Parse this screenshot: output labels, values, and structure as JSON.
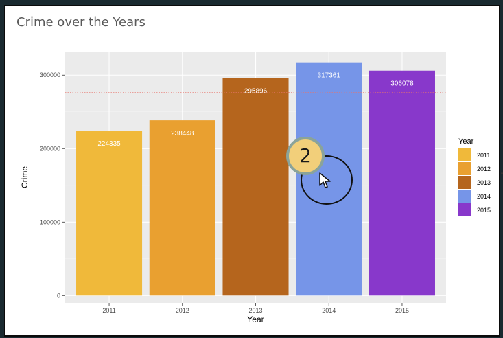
{
  "window": {
    "title": "Crime over the Years"
  },
  "overlay": {
    "step_badge": "2",
    "cursor_icon": "pointer-cursor-icon",
    "focus_ring": "highlight-ring"
  },
  "chart_data": {
    "type": "bar",
    "title": "Crime over the Years",
    "xlabel": "Year",
    "ylabel": "Crime",
    "categories": [
      "2011",
      "2012",
      "2013",
      "2014",
      "2015"
    ],
    "values": [
      224335,
      238448,
      295896,
      317361,
      306078
    ],
    "data_labels": [
      "224335",
      "238448",
      "295896",
      "317361",
      "306078"
    ],
    "colors": [
      "#f0b93a",
      "#e9a030",
      "#b5651d",
      "#7695e8",
      "#8838cb"
    ],
    "ylim": [
      -10000,
      332000
    ],
    "yticks": [
      0,
      100000,
      200000,
      300000
    ],
    "ytick_labels": [
      "0",
      "100000",
      "200000",
      "300000"
    ],
    "reference_line": {
      "value": 276000,
      "color": "#e8736b",
      "style": "dotted"
    },
    "grid": true,
    "panel_background": "#ebebeb",
    "legend": {
      "title": "Year",
      "position": "right",
      "entries": [
        "2011",
        "2012",
        "2013",
        "2014",
        "2015"
      ]
    }
  }
}
